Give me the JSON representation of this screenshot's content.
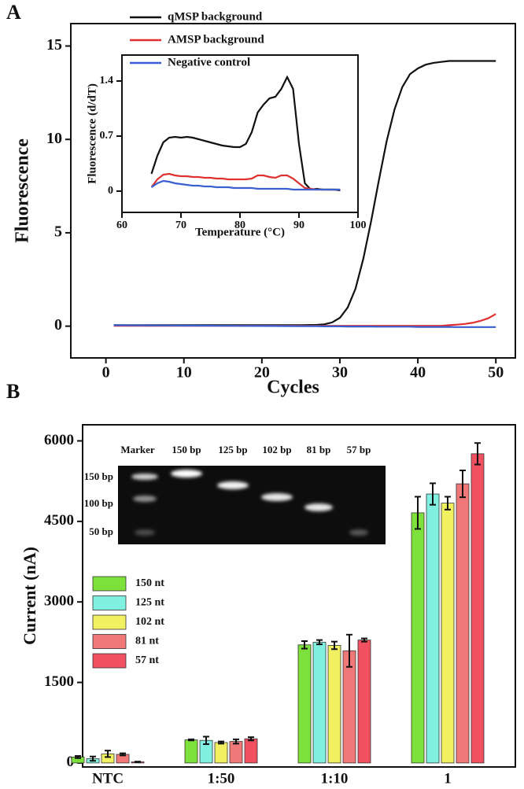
{
  "panels": [
    "A",
    "B"
  ],
  "chart_data": [
    {
      "type": "line",
      "xlabel": "Cycles",
      "ylabel": "Fluorescence",
      "legend": "top-left",
      "xlim": [
        -4.5,
        52.5
      ],
      "ylim": [
        -1.7,
        16.2
      ],
      "xticks": [
        0,
        10,
        20,
        30,
        40,
        50
      ],
      "yticks": [
        0,
        5,
        10,
        15
      ],
      "x": [
        1,
        5,
        10,
        15,
        20,
        25,
        27,
        28,
        29,
        30,
        31,
        32,
        33,
        34,
        35,
        36,
        37,
        38,
        39,
        40,
        41,
        42,
        43,
        44,
        45,
        46,
        47,
        48,
        49,
        50
      ],
      "series": [
        {
          "name": "qMSP background",
          "color": "#111111",
          "values": [
            0.05,
            0.05,
            0.05,
            0.05,
            0.05,
            0.05,
            0.07,
            0.1,
            0.2,
            0.45,
            1.0,
            2.0,
            3.6,
            5.6,
            7.8,
            9.9,
            11.6,
            12.8,
            13.5,
            13.8,
            14.0,
            14.1,
            14.15,
            14.2,
            14.2,
            14.2,
            14.2,
            14.2,
            14.2,
            14.2
          ]
        },
        {
          "name": "AMSP background",
          "color": "#e03030",
          "values": [
            0.02,
            0.02,
            0.02,
            0.02,
            0.02,
            0.02,
            0.02,
            0.02,
            0.02,
            0.02,
            0.02,
            0.02,
            0.02,
            0.02,
            0.02,
            0.02,
            0.02,
            0.02,
            0.02,
            0.02,
            0.02,
            0.02,
            0.02,
            0.05,
            0.08,
            0.12,
            0.18,
            0.28,
            0.42,
            0.65
          ]
        },
        {
          "name": "Negative control",
          "color": "#3a5fd0",
          "values": [
            0.05,
            0.04,
            0.03,
            0.02,
            0.01,
            0.0,
            0.0,
            -0.01,
            -0.01,
            -0.01,
            -0.02,
            -0.02,
            -0.02,
            -0.02,
            -0.03,
            -0.03,
            -0.03,
            -0.03,
            -0.03,
            -0.04,
            -0.04,
            -0.04,
            -0.04,
            -0.04,
            -0.05,
            -0.05,
            -0.05,
            -0.05,
            -0.05,
            -0.05
          ]
        }
      ]
    },
    {
      "type": "line",
      "xlabel": "Temperature (°C)",
      "ylabel": "Fluorescence (d/dT)",
      "xlim": [
        60,
        100
      ],
      "ylim": [
        -0.27,
        1.73
      ],
      "xticks": [
        60,
        70,
        80,
        90,
        100
      ],
      "yticks": [
        0,
        0.7,
        1.4
      ],
      "x": [
        65,
        66,
        67,
        68,
        69,
        70,
        71,
        72,
        73,
        74,
        75,
        76,
        77,
        78,
        79,
        80,
        81,
        82,
        83,
        84,
        85,
        86,
        87,
        88,
        89,
        90,
        91,
        92,
        93,
        94,
        95,
        96,
        97
      ],
      "series": [
        {
          "color": "#111111",
          "values": [
            0.22,
            0.45,
            0.62,
            0.68,
            0.69,
            0.68,
            0.69,
            0.68,
            0.66,
            0.64,
            0.62,
            0.6,
            0.58,
            0.57,
            0.56,
            0.56,
            0.6,
            0.75,
            1.0,
            1.1,
            1.18,
            1.2,
            1.3,
            1.45,
            1.3,
            0.6,
            0.1,
            0.02,
            0.03,
            0.02,
            0.02,
            0.02,
            0.01
          ]
        },
        {
          "color": "#e03030",
          "values": [
            0.05,
            0.15,
            0.21,
            0.22,
            0.2,
            0.19,
            0.19,
            0.18,
            0.18,
            0.17,
            0.17,
            0.16,
            0.16,
            0.15,
            0.15,
            0.15,
            0.15,
            0.16,
            0.2,
            0.2,
            0.18,
            0.17,
            0.2,
            0.2,
            0.16,
            0.1,
            0.04,
            0.03,
            0.02,
            0.02,
            0.02,
            0.02,
            0.02
          ]
        },
        {
          "color": "#3a5fd0",
          "values": [
            0.05,
            0.1,
            0.13,
            0.12,
            0.1,
            0.09,
            0.08,
            0.07,
            0.07,
            0.06,
            0.06,
            0.05,
            0.05,
            0.05,
            0.04,
            0.04,
            0.04,
            0.04,
            0.03,
            0.03,
            0.03,
            0.03,
            0.03,
            0.03,
            0.02,
            0.02,
            0.02,
            0.02,
            0.02,
            0.02,
            0.02,
            0.02,
            0.02
          ]
        }
      ]
    },
    {
      "type": "bar",
      "ylabel": "Current (nA)",
      "legend": "center-left",
      "categories": [
        "NTC",
        "1:50",
        "1:10",
        "1"
      ],
      "ylim": [
        -75,
        6300
      ],
      "yticks": [
        0,
        1500,
        3000,
        4500,
        6000
      ],
      "series": [
        {
          "name": "150 nt",
          "color": "#7ee03a",
          "values": [
            110,
            430,
            2200,
            4660
          ],
          "errors": [
            20,
            10,
            70,
            300
          ]
        },
        {
          "name": "125 nt",
          "color": "#80f0e0",
          "values": [
            80,
            420,
            2250,
            5010
          ],
          "errors": [
            40,
            70,
            40,
            200
          ]
        },
        {
          "name": "102 nt",
          "color": "#f0f060",
          "values": [
            170,
            380,
            2190,
            4840
          ],
          "errors": [
            60,
            20,
            70,
            120
          ]
        },
        {
          "name": "81 nt",
          "color": "#f07878",
          "values": [
            160,
            400,
            2090,
            5200
          ],
          "errors": [
            20,
            40,
            300,
            250
          ]
        },
        {
          "name": "57 nt",
          "color": "#f05060",
          "values": [
            20,
            450,
            2290,
            5760
          ],
          "errors": [
            5,
            30,
            30,
            200
          ]
        }
      ]
    }
  ],
  "gel": {
    "lanes": [
      "Marker",
      "150 bp",
      "125 bp",
      "102 bp",
      "81 bp",
      "57 bp"
    ],
    "ladder": [
      "150 bp",
      "100 bp",
      "50 bp"
    ]
  }
}
